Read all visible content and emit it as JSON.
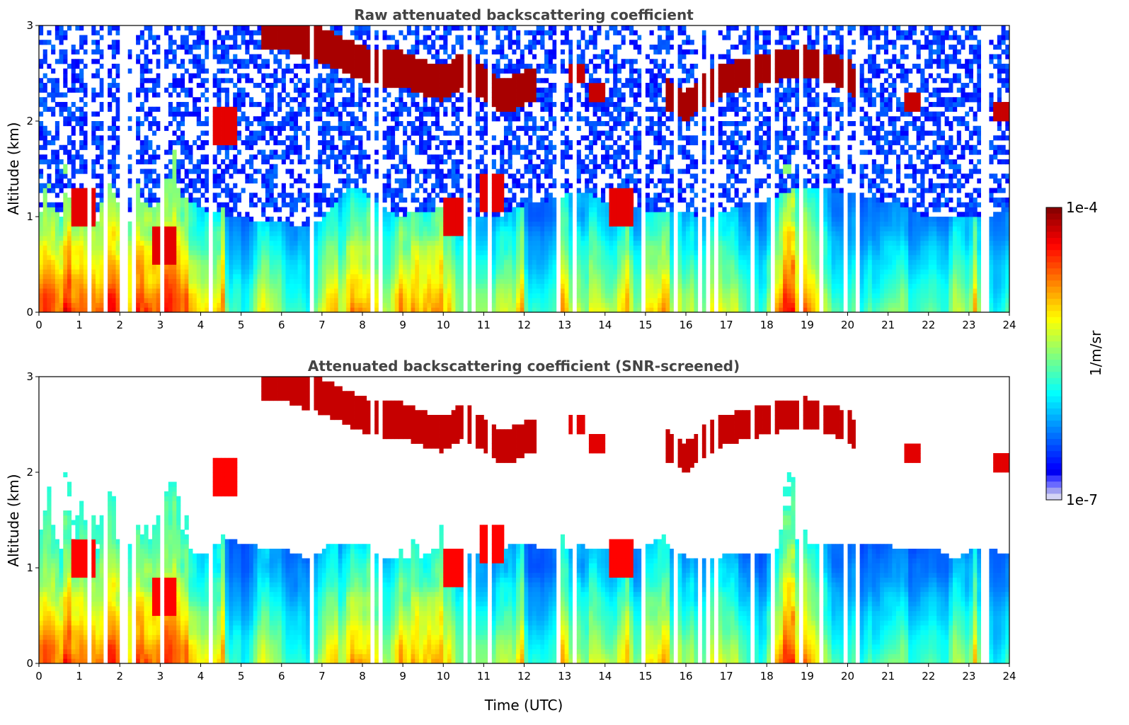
{
  "chart_data": [
    {
      "type": "heatmap",
      "title": "Raw attenuated backscattering coefficient",
      "xlabel": "",
      "ylabel": "Altitude (km)",
      "xlim": [
        0,
        24
      ],
      "ylim": [
        0,
        3
      ],
      "x_ticks": [
        "0",
        "1",
        "2",
        "3",
        "4",
        "5",
        "6",
        "7",
        "8",
        "9",
        "10",
        "11",
        "12",
        "13",
        "14",
        "15",
        "16",
        "17",
        "18",
        "19",
        "20",
        "21",
        "22",
        "23",
        "24"
      ],
      "y_ticks": [
        "0",
        "1",
        "2",
        "3"
      ],
      "screened": false
    },
    {
      "type": "heatmap",
      "title": "Attenuated backscattering coefficient (SNR-screened)",
      "xlabel": "Time (UTC)",
      "ylabel": "Altitude (km)",
      "xlim": [
        0,
        24
      ],
      "ylim": [
        0,
        3
      ],
      "x_ticks": [
        "0",
        "1",
        "2",
        "3",
        "4",
        "5",
        "6",
        "7",
        "8",
        "9",
        "10",
        "11",
        "12",
        "13",
        "14",
        "15",
        "16",
        "17",
        "18",
        "19",
        "20",
        "21",
        "22",
        "23",
        "24"
      ],
      "y_ticks": [
        "0",
        "1",
        "2",
        "3"
      ],
      "screened": true
    }
  ],
  "colorbar": {
    "label": "1/m/sr",
    "min_label": "1e-7",
    "max_label": "1e-4",
    "colormap": "jet"
  },
  "features": {
    "cloud_layer": [
      [
        5.5,
        2.95
      ],
      [
        6.0,
        2.95
      ],
      [
        6.5,
        2.85
      ],
      [
        7.0,
        2.8
      ],
      [
        7.5,
        2.7
      ],
      [
        8.0,
        2.6
      ],
      [
        8.5,
        2.55
      ],
      [
        9.0,
        2.55
      ],
      [
        9.5,
        2.45
      ],
      [
        10.0,
        2.4
      ],
      [
        10.5,
        2.55
      ],
      [
        11.0,
        2.4
      ],
      [
        11.5,
        2.25
      ],
      [
        12.0,
        2.35
      ],
      [
        12.3,
        2.4
      ]
    ],
    "cloud_layer_2": [
      [
        15.5,
        2.3
      ],
      [
        16.0,
        2.15
      ],
      [
        16.5,
        2.35
      ],
      [
        17.0,
        2.45
      ],
      [
        17.5,
        2.5
      ],
      [
        18.0,
        2.55
      ],
      [
        18.5,
        2.6
      ],
      [
        19.0,
        2.62
      ],
      [
        19.5,
        2.55
      ],
      [
        20.0,
        2.5
      ],
      [
        20.3,
        2.3
      ]
    ],
    "low_clouds": [
      [
        1.1,
        1.1
      ],
      [
        3.1,
        0.7
      ],
      [
        10.3,
        1.0
      ],
      [
        11.2,
        1.25
      ],
      [
        14.4,
        1.1
      ],
      [
        4.6,
        1.95
      ]
    ],
    "small_clouds": [
      [
        13.3,
        2.5
      ],
      [
        13.8,
        2.3
      ],
      [
        21.6,
        2.2
      ],
      [
        23.8,
        2.1
      ]
    ]
  }
}
